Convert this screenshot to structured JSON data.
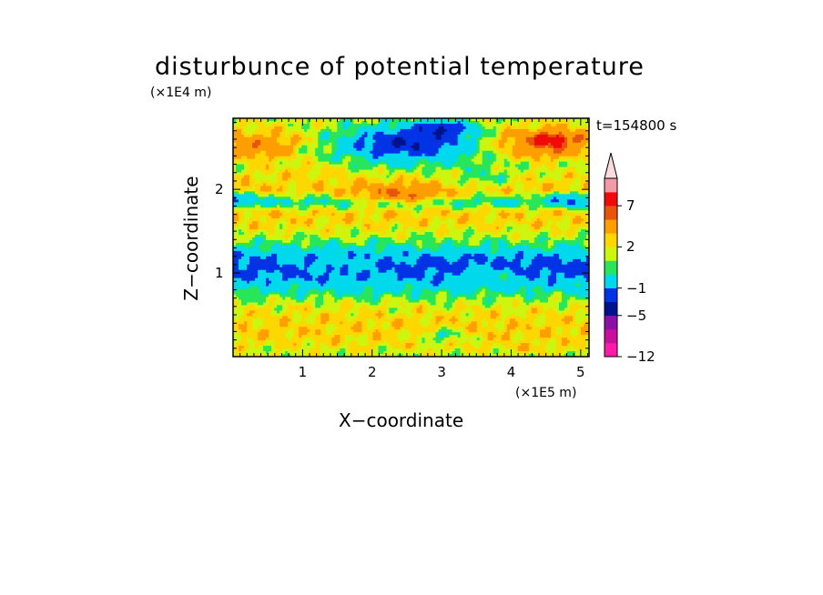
{
  "chart_data": {
    "type": "heatmap",
    "title": "disturbunce of potential temperature",
    "time_label": "t=154800 s",
    "xlabel": "X−coordinate",
    "ylabel": "Z−coordinate",
    "x_unit_label": "(×1E5 m)",
    "y_unit_label": "(×1E4 m)",
    "xlim": [
      0,
      5.12
    ],
    "ylim": [
      0,
      2.85
    ],
    "x_ticks": [
      {
        "value": 1,
        "label": "1"
      },
      {
        "value": 2,
        "label": "2"
      },
      {
        "value": 3,
        "label": "3"
      },
      {
        "value": 4,
        "label": "4"
      },
      {
        "value": 5,
        "label": "5"
      }
    ],
    "y_ticks": [
      {
        "value": 1,
        "label": "1"
      },
      {
        "value": 2,
        "label": "2"
      }
    ],
    "colorbar": {
      "levels": [
        -12,
        -9,
        -7,
        -5,
        -3,
        -1,
        0,
        1,
        2,
        4,
        5,
        7,
        9
      ],
      "colors": [
        "#ff1aa8",
        "#c80f9e",
        "#8c10a8",
        "#00128c",
        "#0033e6",
        "#00d9ec",
        "#28e65a",
        "#cdf510",
        "#ffd700",
        "#ff9e00",
        "#e8540a",
        "#f00a0a",
        "#f29aa5",
        "#f9dadd"
      ],
      "tick_labels": [
        {
          "value": 7,
          "label": "7"
        },
        {
          "value": 2,
          "label": "2"
        },
        {
          "value": -1,
          "label": "−1"
        },
        {
          "value": -5,
          "label": "−5"
        },
        {
          "value": -12,
          "label": "−12"
        }
      ]
    },
    "bands": [
      {
        "z": 0.05,
        "value": 0.6
      },
      {
        "z": 0.15,
        "value": 1.2
      },
      {
        "z": 0.3,
        "value": 1.6
      },
      {
        "z": 0.45,
        "value": 1.4
      },
      {
        "z": 0.6,
        "value": 0.8
      },
      {
        "z": 0.72,
        "value": -0.3
      },
      {
        "z": 0.82,
        "value": -1.5
      },
      {
        "z": 0.95,
        "value": -3.2
      },
      {
        "z": 1.08,
        "value": -3.8
      },
      {
        "z": 1.2,
        "value": -2.9
      },
      {
        "z": 1.32,
        "value": -0.8
      },
      {
        "z": 1.45,
        "value": 0.4
      },
      {
        "z": 1.58,
        "value": 1.3
      },
      {
        "z": 1.72,
        "value": 1.6
      },
      {
        "z": 1.85,
        "value": -1.4
      },
      {
        "z": 2.0,
        "value": 1.8
      },
      {
        "z": 2.15,
        "value": 1.2
      },
      {
        "z": 2.3,
        "value": 0.2
      },
      {
        "z": 2.45,
        "value": 1.1
      },
      {
        "z": 2.6,
        "value": 1.8
      },
      {
        "z": 2.75,
        "value": 1.0
      },
      {
        "z": 2.85,
        "value": 0.6
      }
    ],
    "features": [
      {
        "x": 2.5,
        "z": 2.55,
        "rx": 1.4,
        "rz": 0.28,
        "value": -5.0
      },
      {
        "x": 3.0,
        "z": 2.72,
        "rx": 0.5,
        "rz": 0.12,
        "value": -5.5
      },
      {
        "x": 2.4,
        "z": 1.95,
        "rx": 0.9,
        "rz": 0.14,
        "value": 4.0
      },
      {
        "x": 4.5,
        "z": 2.55,
        "rx": 0.8,
        "rz": 0.22,
        "value": 4.5
      },
      {
        "x": 4.6,
        "z": 2.6,
        "rx": 0.3,
        "rz": 0.08,
        "value": 6.5
      },
      {
        "x": 0.4,
        "z": 2.5,
        "rx": 0.6,
        "rz": 0.2,
        "value": 3.3
      },
      {
        "x": 4.9,
        "z": 1.87,
        "rx": 0.4,
        "rz": 0.1,
        "value": -3.5
      },
      {
        "x": 0.1,
        "z": 1.87,
        "rx": 0.3,
        "rz": 0.08,
        "value": -3.5
      },
      {
        "x": 1.5,
        "z": 1.12,
        "rx": 0.8,
        "rz": 0.18,
        "value": -2.2
      },
      {
        "x": 3.7,
        "z": 0.95,
        "rx": 0.6,
        "rz": 0.14,
        "value": -1.6
      },
      {
        "x": 2.0,
        "z": 0.85,
        "rx": 0.5,
        "rz": 0.1,
        "value": -2.0
      },
      {
        "x": 1.0,
        "z": 2.2,
        "rx": 0.8,
        "rz": 0.18,
        "value": 1.4
      },
      {
        "x": 3.6,
        "z": 2.15,
        "rx": 0.6,
        "rz": 0.15,
        "value": -0.6
      },
      {
        "x": 1.6,
        "z": 0.4,
        "rx": 0.5,
        "rz": 0.15,
        "value": 1.5
      },
      {
        "x": 3.0,
        "z": 0.25,
        "rx": 0.4,
        "rz": 0.1,
        "value": -0.8
      },
      {
        "x": 4.2,
        "z": 0.1,
        "rx": 0.5,
        "rz": 0.08,
        "value": 1.6
      }
    ]
  }
}
